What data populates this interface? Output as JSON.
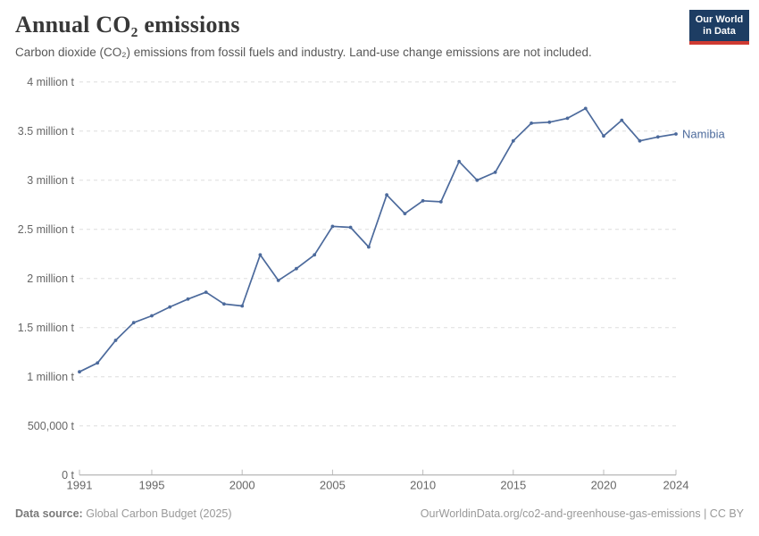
{
  "header": {
    "title": "Annual CO₂ emissions",
    "subtitle": "Carbon dioxide (CO₂) emissions from fossil fuels and industry. Land-use change emissions are not included.",
    "logo_line1": "Our World",
    "logo_line2": "in Data"
  },
  "footer": {
    "source_label": "Data source:",
    "source_value": "Global Carbon Budget (2025)",
    "link_text": "OurWorldinData.org/co2-and-greenhouse-gas-emissions | CC BY"
  },
  "colors": {
    "line": "#4c6a9c",
    "grid": "#dddddd",
    "axis": "#a3a3a3",
    "tick": "#bbbbbb",
    "axis_text": "#666666",
    "logo_bg": "#1d3d63",
    "logo_stripe": "#cf3b32"
  },
  "chart_data": {
    "type": "line",
    "title": "Annual CO₂ emissions",
    "subtitle": "Carbon dioxide (CO₂) emissions from fossil fuels and industry. Land-use change emissions are not included.",
    "unit": "t",
    "grid": "horizontal dashed",
    "legend_position": "end-of-line label",
    "xlim": [
      1991,
      2024
    ],
    "ylim_million_t": [
      0,
      4
    ],
    "xticks": [
      1991,
      1995,
      2000,
      2005,
      2010,
      2015,
      2020,
      2024
    ],
    "yticks": [
      {
        "v": 0,
        "label": "0 t"
      },
      {
        "v": 0.5,
        "label": "500,000 t"
      },
      {
        "v": 1,
        "label": "1 million t"
      },
      {
        "v": 1.5,
        "label": "1.5 million t"
      },
      {
        "v": 2,
        "label": "2 million t"
      },
      {
        "v": 2.5,
        "label": "2.5 million t"
      },
      {
        "v": 3,
        "label": "3 million t"
      },
      {
        "v": 3.5,
        "label": "3.5 million t"
      },
      {
        "v": 4,
        "label": "4 million t"
      }
    ],
    "x": [
      1991,
      1992,
      1993,
      1994,
      1995,
      1996,
      1997,
      1998,
      1999,
      2000,
      2001,
      2002,
      2003,
      2004,
      2005,
      2006,
      2007,
      2008,
      2009,
      2010,
      2011,
      2012,
      2013,
      2014,
      2015,
      2016,
      2017,
      2018,
      2019,
      2020,
      2021,
      2022,
      2023,
      2024
    ],
    "series": [
      {
        "name": "Namibia",
        "color": "#4c6a9c",
        "values_million_t": [
          1.05,
          1.14,
          1.37,
          1.55,
          1.62,
          1.71,
          1.79,
          1.86,
          1.74,
          1.72,
          2.24,
          1.98,
          2.1,
          2.24,
          2.53,
          2.52,
          2.32,
          2.85,
          2.66,
          2.79,
          2.78,
          3.19,
          3.0,
          3.08,
          3.4,
          3.58,
          3.59,
          3.63,
          3.73,
          3.45,
          3.61,
          3.4,
          3.44,
          3.47
        ]
      }
    ]
  }
}
